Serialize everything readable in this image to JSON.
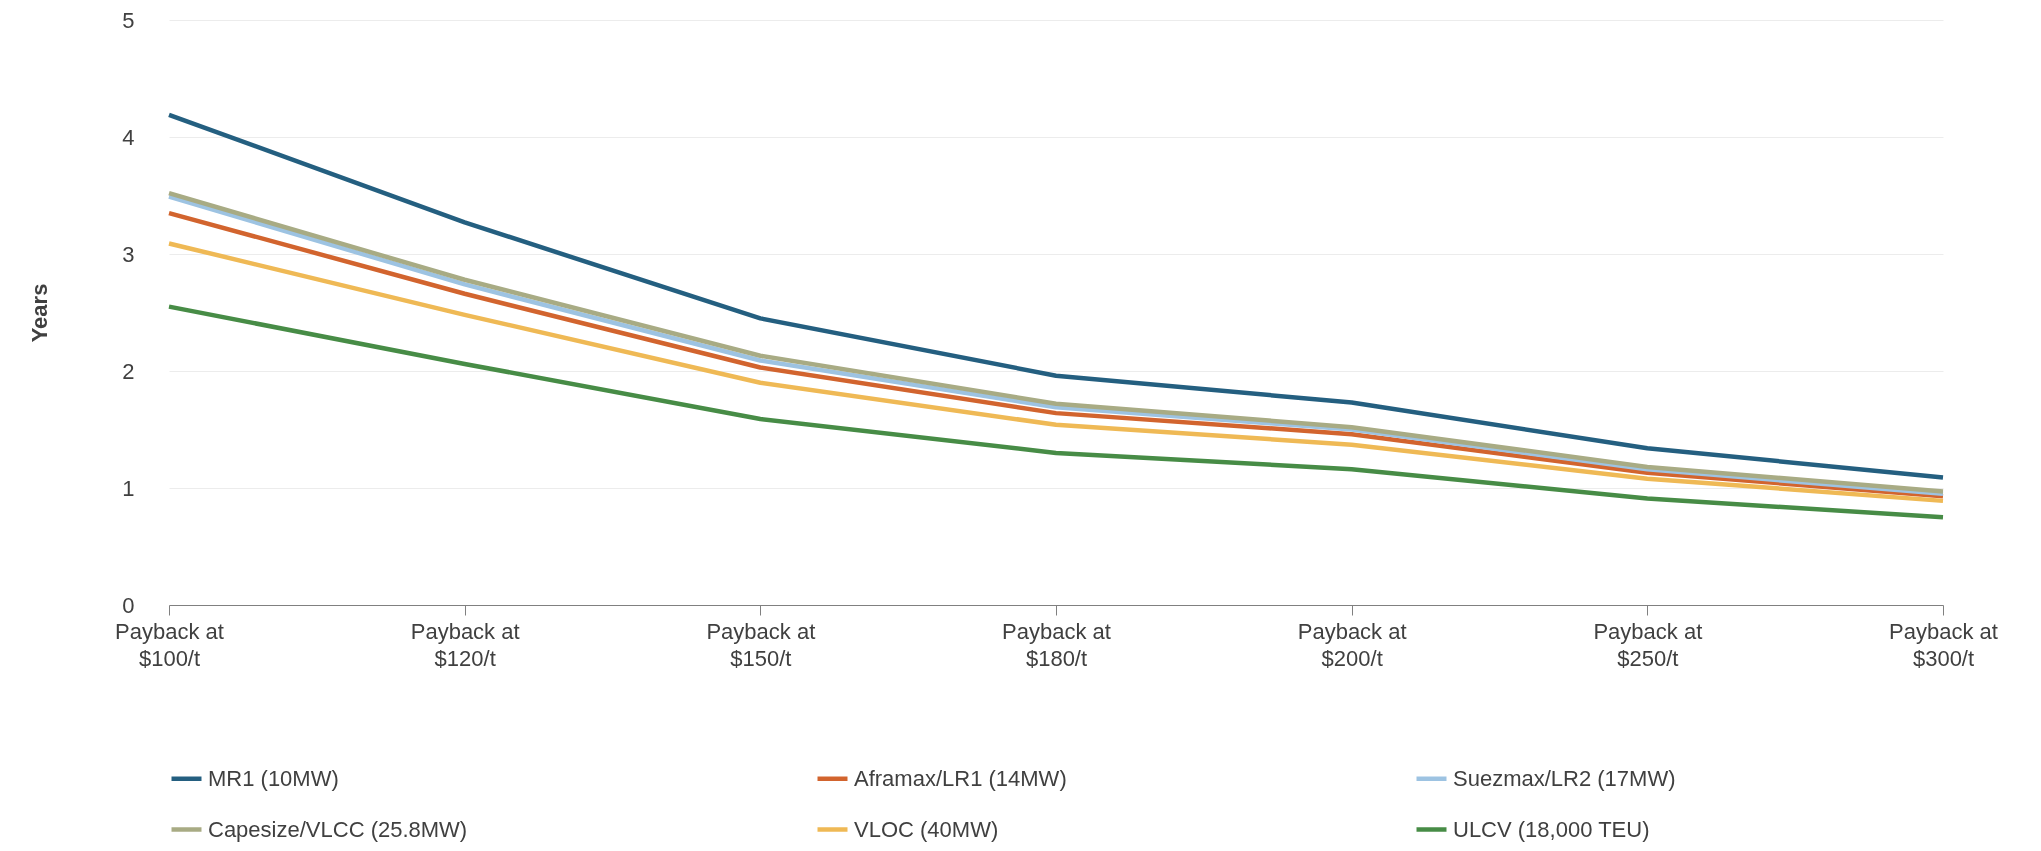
{
  "chart_data": {
    "type": "line",
    "ylabel": "Years",
    "categories": [
      "Payback at $100/t",
      "Payback at $120/t",
      "Payback at $150/t",
      "Payback at $180/t",
      "Payback at $200/t",
      "Payback at $250/t",
      "Payback at $300/t"
    ],
    "series": [
      {
        "name": "MR1 (10MW)",
        "color": "#245f80",
        "values": [
          4.19,
          3.27,
          2.45,
          1.96,
          1.73,
          1.34,
          1.09
        ]
      },
      {
        "name": "Aframax/LR1 (14MW)",
        "color": "#d2642e",
        "values": [
          3.35,
          2.66,
          2.03,
          1.64,
          1.46,
          1.13,
          0.93
        ]
      },
      {
        "name": "Suezmax/LR2 (17MW)",
        "color": "#9dc3e2",
        "values": [
          3.49,
          2.74,
          2.09,
          1.69,
          1.5,
          1.16,
          0.95
        ]
      },
      {
        "name": "Capesize/VLCC (25.8MW)",
        "color": "#a8ab84",
        "values": [
          3.52,
          2.78,
          2.13,
          1.72,
          1.52,
          1.18,
          0.97
        ]
      },
      {
        "name": "VLOC (40MW)",
        "color": "#efb955",
        "values": [
          3.09,
          2.48,
          1.9,
          1.54,
          1.37,
          1.08,
          0.89
        ]
      },
      {
        "name": "ULCV (18,000 TEU)",
        "color": "#478c46",
        "values": [
          2.55,
          2.06,
          1.59,
          1.3,
          1.16,
          0.91,
          0.75
        ]
      }
    ],
    "ylim": [
      0,
      5
    ],
    "yticks": [
      0,
      1,
      2,
      3,
      4,
      5
    ],
    "grid": "y",
    "legend": "bottom",
    "marker": "none",
    "line_style": "solid"
  }
}
